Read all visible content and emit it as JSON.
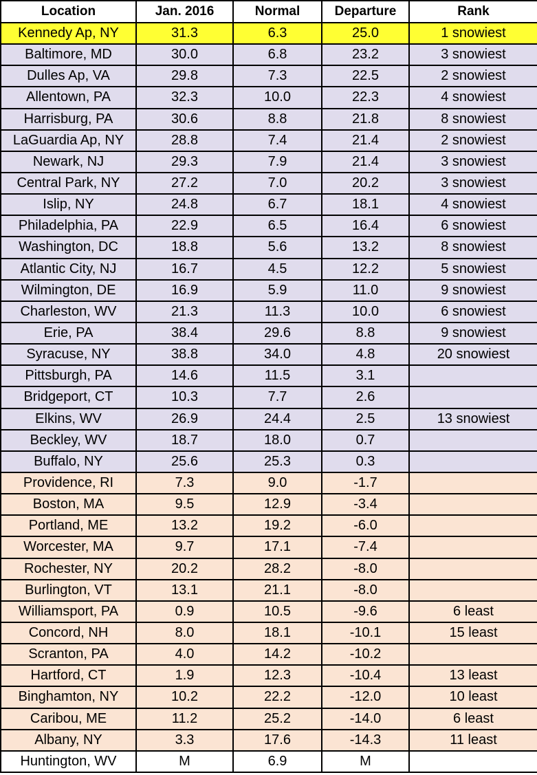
{
  "table": {
    "headers": [
      "Location",
      "Jan. 2016",
      "Normal",
      "Departure",
      "Rank"
    ],
    "colors": {
      "highlight": "#ffff33",
      "above_normal": "#e0dced",
      "below_normal": "#fbe4d3",
      "missing": "#ffffff"
    },
    "rows": [
      {
        "location": "Kennedy Ap, NY",
        "jan2016": "31.3",
        "normal": "6.3",
        "departure": "25.0",
        "rank": "1 snowiest",
        "group": "highlight"
      },
      {
        "location": "Baltimore, MD",
        "jan2016": "30.0",
        "normal": "6.8",
        "departure": "23.2",
        "rank": "3 snowiest",
        "group": "above"
      },
      {
        "location": "Dulles Ap, VA",
        "jan2016": "29.8",
        "normal": "7.3",
        "departure": "22.5",
        "rank": "2 snowiest",
        "group": "above"
      },
      {
        "location": "Allentown, PA",
        "jan2016": "32.3",
        "normal": "10.0",
        "departure": "22.3",
        "rank": "4 snowiest",
        "group": "above"
      },
      {
        "location": "Harrisburg, PA",
        "jan2016": "30.6",
        "normal": "8.8",
        "departure": "21.8",
        "rank": "8 snowiest",
        "group": "above"
      },
      {
        "location": "LaGuardia Ap, NY",
        "jan2016": "28.8",
        "normal": "7.4",
        "departure": "21.4",
        "rank": "2 snowiest",
        "group": "above"
      },
      {
        "location": "Newark, NJ",
        "jan2016": "29.3",
        "normal": "7.9",
        "departure": "21.4",
        "rank": "3 snowiest",
        "group": "above"
      },
      {
        "location": "Central Park, NY",
        "jan2016": "27.2",
        "normal": "7.0",
        "departure": "20.2",
        "rank": "3 snowiest",
        "group": "above"
      },
      {
        "location": "Islip, NY",
        "jan2016": "24.8",
        "normal": "6.7",
        "departure": "18.1",
        "rank": "4 snowiest",
        "group": "above"
      },
      {
        "location": "Philadelphia, PA",
        "jan2016": "22.9",
        "normal": "6.5",
        "departure": "16.4",
        "rank": "6 snowiest",
        "group": "above"
      },
      {
        "location": "Washington, DC",
        "jan2016": "18.8",
        "normal": "5.6",
        "departure": "13.2",
        "rank": "8 snowiest",
        "group": "above"
      },
      {
        "location": "Atlantic City, NJ",
        "jan2016": "16.7",
        "normal": "4.5",
        "departure": "12.2",
        "rank": "5 snowiest",
        "group": "above"
      },
      {
        "location": "Wilmington, DE",
        "jan2016": "16.9",
        "normal": "5.9",
        "departure": "11.0",
        "rank": "9 snowiest",
        "group": "above"
      },
      {
        "location": "Charleston, WV",
        "jan2016": "21.3",
        "normal": "11.3",
        "departure": "10.0",
        "rank": "6 snowiest",
        "group": "above"
      },
      {
        "location": "Erie, PA",
        "jan2016": "38.4",
        "normal": "29.6",
        "departure": "8.8",
        "rank": "9 snowiest",
        "group": "above"
      },
      {
        "location": "Syracuse, NY",
        "jan2016": "38.8",
        "normal": "34.0",
        "departure": "4.8",
        "rank": "20 snowiest",
        "group": "above"
      },
      {
        "location": "Pittsburgh, PA",
        "jan2016": "14.6",
        "normal": "11.5",
        "departure": "3.1",
        "rank": "",
        "group": "above"
      },
      {
        "location": "Bridgeport, CT",
        "jan2016": "10.3",
        "normal": "7.7",
        "departure": "2.6",
        "rank": "",
        "group": "above"
      },
      {
        "location": "Elkins, WV",
        "jan2016": "26.9",
        "normal": "24.4",
        "departure": "2.5",
        "rank": "13 snowiest",
        "group": "above"
      },
      {
        "location": "Beckley, WV",
        "jan2016": "18.7",
        "normal": "18.0",
        "departure": "0.7",
        "rank": "",
        "group": "above"
      },
      {
        "location": "Buffalo, NY",
        "jan2016": "25.6",
        "normal": "25.3",
        "departure": "0.3",
        "rank": "",
        "group": "above"
      },
      {
        "location": "Providence, RI",
        "jan2016": "7.3",
        "normal": "9.0",
        "departure": "-1.7",
        "rank": "",
        "group": "below"
      },
      {
        "location": "Boston, MA",
        "jan2016": "9.5",
        "normal": "12.9",
        "departure": "-3.4",
        "rank": "",
        "group": "below"
      },
      {
        "location": "Portland, ME",
        "jan2016": "13.2",
        "normal": "19.2",
        "departure": "-6.0",
        "rank": "",
        "group": "below"
      },
      {
        "location": "Worcester, MA",
        "jan2016": "9.7",
        "normal": "17.1",
        "departure": "-7.4",
        "rank": "",
        "group": "below"
      },
      {
        "location": "Rochester, NY",
        "jan2016": "20.2",
        "normal": "28.2",
        "departure": "-8.0",
        "rank": "",
        "group": "below"
      },
      {
        "location": "Burlington, VT",
        "jan2016": "13.1",
        "normal": "21.1",
        "departure": "-8.0",
        "rank": "",
        "group": "below"
      },
      {
        "location": "Williamsport, PA",
        "jan2016": "0.9",
        "normal": "10.5",
        "departure": "-9.6",
        "rank": "6 least",
        "group": "below"
      },
      {
        "location": "Concord, NH",
        "jan2016": "8.0",
        "normal": "18.1",
        "departure": "-10.1",
        "rank": "15 least",
        "group": "below"
      },
      {
        "location": "Scranton, PA",
        "jan2016": "4.0",
        "normal": "14.2",
        "departure": "-10.2",
        "rank": "",
        "group": "below"
      },
      {
        "location": "Hartford, CT",
        "jan2016": "1.9",
        "normal": "12.3",
        "departure": "-10.4",
        "rank": "13 least",
        "group": "below"
      },
      {
        "location": "Binghamton, NY",
        "jan2016": "10.2",
        "normal": "22.2",
        "departure": "-12.0",
        "rank": "10 least",
        "group": "below"
      },
      {
        "location": "Caribou, ME",
        "jan2016": "11.2",
        "normal": "25.2",
        "departure": "-14.0",
        "rank": "6 least",
        "group": "below"
      },
      {
        "location": "Albany, NY",
        "jan2016": "3.3",
        "normal": "17.6",
        "departure": "-14.3",
        "rank": "11 least",
        "group": "below"
      },
      {
        "location": "Huntington, WV",
        "jan2016": "M",
        "normal": "6.9",
        "departure": "M",
        "rank": "",
        "group": "plain"
      }
    ]
  }
}
